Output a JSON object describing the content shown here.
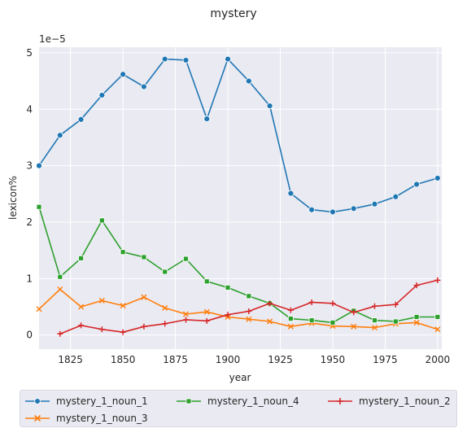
{
  "chart_data": {
    "type": "line",
    "title": "mystery",
    "xlabel": "year",
    "ylabel": "lexicon%",
    "offset_label": "1e−5",
    "xlim": [
      1810,
      2002
    ],
    "ylim": [
      -0.25,
      5.1
    ],
    "xticks": [
      1825,
      1850,
      1875,
      1900,
      1925,
      1950,
      1975,
      2000
    ],
    "yticks": [
      0,
      1,
      2,
      3,
      4,
      5
    ],
    "grid": true,
    "legend_position": "below",
    "series": [
      {
        "name": "mystery_1_noun_1",
        "color": "#1f77b4",
        "marker": "circle",
        "x": [
          1810,
          1820,
          1830,
          1840,
          1850,
          1860,
          1870,
          1880,
          1890,
          1900,
          1910,
          1920,
          1930,
          1940,
          1950,
          1960,
          1970,
          1980,
          1990,
          2000
        ],
        "values": [
          3.0,
          3.54,
          3.82,
          4.25,
          4.62,
          4.4,
          4.89,
          4.87,
          3.83,
          4.89,
          4.5,
          4.06,
          2.51,
          2.22,
          2.18,
          2.24,
          2.32,
          2.45,
          2.67,
          2.78
        ]
      },
      {
        "name": "mystery_1_noun_3",
        "color": "#ff7f0e",
        "marker": "x",
        "x": [
          1810,
          1820,
          1830,
          1840,
          1850,
          1860,
          1870,
          1880,
          1890,
          1900,
          1910,
          1920,
          1930,
          1940,
          1950,
          1960,
          1970,
          1980,
          1990,
          2000
        ],
        "values": [
          0.46,
          0.81,
          0.5,
          0.61,
          0.52,
          0.67,
          0.48,
          0.37,
          0.41,
          0.32,
          0.28,
          0.24,
          0.15,
          0.21,
          0.16,
          0.15,
          0.13,
          0.2,
          0.22,
          0.1
        ]
      },
      {
        "name": "mystery_1_noun_4",
        "color": "#2ca02c",
        "marker": "square",
        "x": [
          1810,
          1820,
          1830,
          1840,
          1850,
          1860,
          1870,
          1880,
          1890,
          1900,
          1910,
          1920,
          1930,
          1940,
          1950,
          1960,
          1970,
          1980,
          1990,
          2000
        ],
        "values": [
          2.27,
          1.03,
          1.36,
          2.03,
          1.47,
          1.38,
          1.12,
          1.35,
          0.95,
          0.84,
          0.69,
          0.56,
          0.29,
          0.26,
          0.22,
          0.43,
          0.26,
          0.24,
          0.32,
          0.32
        ]
      },
      {
        "name": "mystery_1_noun_2",
        "color": "#d62728",
        "marker": "plus",
        "x": [
          1820,
          1830,
          1840,
          1850,
          1860,
          1870,
          1880,
          1890,
          1900,
          1910,
          1920,
          1930,
          1940,
          1950,
          1960,
          1970,
          1980,
          1990,
          2000
        ],
        "values": [
          0.02,
          0.17,
          0.1,
          0.05,
          0.15,
          0.2,
          0.27,
          0.25,
          0.36,
          0.42,
          0.56,
          0.44,
          0.58,
          0.56,
          0.4,
          0.51,
          0.54,
          0.88,
          0.97
        ]
      }
    ]
  },
  "legend": {
    "entries": [
      "mystery_1_noun_1",
      "mystery_1_noun_3",
      "mystery_1_noun_4",
      "mystery_1_noun_2"
    ]
  }
}
